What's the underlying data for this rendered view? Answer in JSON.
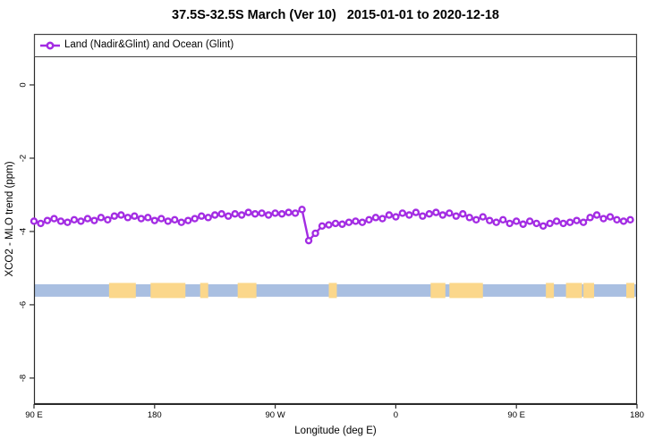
{
  "title": "37.5S-32.5S March (Ver 10)   2015-01-01 to 2020-12-18",
  "legend": {
    "label": "Land (Nadir&Glint) and Ocean (Glint)",
    "marker_icon": "open-circle-on-line",
    "marker_color": "#A32CE3"
  },
  "chart_data": {
    "type": "line",
    "title": "37.5S-32.5S March (Ver 10)   2015-01-01 to 2020-12-18",
    "xlabel": "Longitude (deg E)",
    "ylabel": "XCO2 - MLO trend (ppm)",
    "legend_position": "top-left-full-width-box",
    "grid": false,
    "marker": "open-circle",
    "xlim": [
      90,
      540
    ],
    "ylim": [
      -8.71,
      1.39
    ],
    "xticks": [
      {
        "lon": 90,
        "label": "90 E"
      },
      {
        "lon": 180,
        "label": "180"
      },
      {
        "lon": 270,
        "label": "90 W"
      },
      {
        "lon": 360,
        "label": "0"
      },
      {
        "lon": 450,
        "label": "90 E"
      },
      {
        "lon": 540,
        "label": "180"
      }
    ],
    "yticks": [
      {
        "v": 0,
        "label": "0"
      },
      {
        "v": -2,
        "label": "-2"
      },
      {
        "v": -4,
        "label": "-4"
      },
      {
        "v": -6,
        "label": "-6"
      },
      {
        "v": -8,
        "label": "-8"
      }
    ],
    "series": [
      {
        "name": "Land (Nadir&Glint) and Ocean (Glint)",
        "color": "#A32CE3",
        "x": [
          90,
          95,
          100,
          105,
          110,
          115,
          120,
          125,
          130,
          135,
          140,
          145,
          150,
          155,
          160,
          165,
          170,
          175,
          180,
          185,
          190,
          195,
          200,
          205,
          210,
          215,
          220,
          225,
          230,
          235,
          240,
          245,
          250,
          255,
          260,
          265,
          270,
          275,
          280,
          285,
          290,
          295,
          300,
          305,
          310,
          315,
          320,
          325,
          330,
          335,
          340,
          345,
          350,
          355,
          360,
          365,
          370,
          375,
          380,
          385,
          390,
          395,
          400,
          405,
          410,
          415,
          420,
          425,
          430,
          435,
          440,
          445,
          450,
          455,
          460,
          465,
          470,
          475,
          480,
          485,
          490,
          495,
          500,
          505,
          510,
          515,
          520,
          525,
          530,
          535
        ],
        "values": [
          -3.72,
          -3.78,
          -3.7,
          -3.65,
          -3.72,
          -3.75,
          -3.68,
          -3.72,
          -3.65,
          -3.7,
          -3.62,
          -3.68,
          -3.58,
          -3.55,
          -3.62,
          -3.58,
          -3.65,
          -3.62,
          -3.7,
          -3.65,
          -3.72,
          -3.68,
          -3.75,
          -3.7,
          -3.65,
          -3.58,
          -3.62,
          -3.55,
          -3.52,
          -3.58,
          -3.52,
          -3.55,
          -3.48,
          -3.52,
          -3.5,
          -3.55,
          -3.5,
          -3.52,
          -3.48,
          -3.5,
          -3.4,
          -4.25,
          -4.05,
          -3.85,
          -3.82,
          -3.78,
          -3.8,
          -3.75,
          -3.72,
          -3.75,
          -3.68,
          -3.62,
          -3.65,
          -3.55,
          -3.6,
          -3.5,
          -3.55,
          -3.48,
          -3.58,
          -3.52,
          -3.48,
          -3.55,
          -3.5,
          -3.58,
          -3.52,
          -3.62,
          -3.68,
          -3.6,
          -3.7,
          -3.75,
          -3.68,
          -3.78,
          -3.72,
          -3.8,
          -3.72,
          -3.78,
          -3.85,
          -3.78,
          -3.72,
          -3.78,
          -3.75,
          -3.7,
          -3.75,
          -3.62,
          -3.55,
          -3.65,
          -3.6,
          -3.68,
          -3.72,
          -3.68
        ]
      }
    ],
    "map_strip": {
      "description": "land-ocean strip along latitude band",
      "ocean_color": "#A9BFE1",
      "land_color": "#FBD78B",
      "value_top": -5.44,
      "value_bottom": -5.78,
      "land_patches_lon": [
        [
          146,
          166
        ],
        [
          177,
          203
        ],
        [
          214,
          220
        ],
        [
          242,
          256
        ],
        [
          310,
          316
        ],
        [
          386,
          397
        ],
        [
          400,
          425
        ],
        [
          472,
          478
        ],
        [
          487,
          499
        ],
        [
          500,
          508
        ],
        [
          532,
          538
        ]
      ]
    },
    "colors": {
      "series": "#A32CE3",
      "axis": "#2B2B2B",
      "background": "#FFFFFF"
    }
  }
}
